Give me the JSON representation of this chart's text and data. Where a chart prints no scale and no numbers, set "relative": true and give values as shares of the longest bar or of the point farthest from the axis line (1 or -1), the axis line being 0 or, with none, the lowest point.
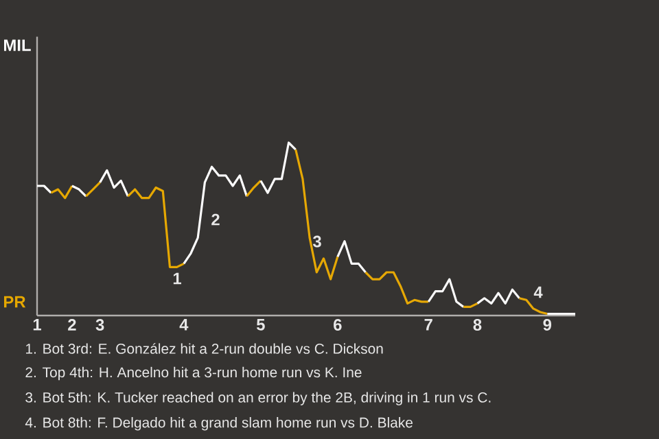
{
  "chart_data": {
    "type": "line",
    "relative": true,
    "marker": "none",
    "line_style": "solid",
    "categories": [
      "1",
      null,
      null,
      null,
      null,
      "2",
      null,
      null,
      null,
      "3",
      null,
      null,
      null,
      null,
      null,
      null,
      null,
      null,
      null,
      null,
      null,
      "4",
      null,
      null,
      null,
      null,
      null,
      null,
      null,
      null,
      null,
      null,
      "5",
      null,
      null,
      null,
      null,
      null,
      null,
      null,
      null,
      null,
      null,
      "6",
      null,
      null,
      null,
      null,
      null,
      null,
      null,
      null,
      null,
      null,
      null,
      null,
      "7",
      null,
      null,
      null,
      null,
      null,
      null,
      "8",
      null,
      null,
      null,
      null,
      null,
      null,
      null,
      null,
      null,
      "9",
      null,
      null,
      null,
      null
    ],
    "series": [
      {
        "name": "MIL",
        "color": "#ffffff",
        "values": [
          0.75,
          0.75,
          0.71,
          null,
          null,
          null,
          null,
          null,
          null,
          null,
          null,
          null,
          null,
          null,
          null,
          null,
          null,
          null,
          null,
          null,
          null,
          null,
          null,
          null,
          null,
          null,
          null,
          null,
          null,
          null,
          null,
          null,
          null,
          null,
          null,
          null,
          null,
          null,
          null,
          null,
          null,
          null,
          null,
          null,
          null,
          null,
          null,
          null,
          null,
          null,
          null,
          null,
          null,
          null,
          null,
          null,
          null,
          null,
          null,
          null,
          null,
          null,
          null,
          null,
          null,
          null,
          null,
          null,
          null,
          null,
          null,
          null,
          null,
          null,
          null,
          null,
          null,
          null
        ]
      },
      {
        "name": "PR",
        "color": "#e6a800",
        "values": [
          null,
          null,
          0.71,
          0.73,
          0.68,
          0.75,
          null,
          null,
          null,
          null,
          null,
          null,
          null,
          null,
          null,
          null,
          null,
          null,
          null,
          null,
          null,
          null,
          null,
          null,
          null,
          null,
          null,
          null,
          null,
          null,
          null,
          null,
          null,
          null,
          null,
          null,
          null,
          null,
          null,
          null,
          null,
          null,
          null,
          null,
          null,
          null,
          null,
          null,
          null,
          null,
          null,
          null,
          null,
          null,
          null,
          null,
          null,
          null,
          null,
          null,
          null,
          null,
          null,
          null,
          null,
          null,
          null,
          null,
          null,
          null,
          null,
          null,
          null,
          null,
          null,
          null,
          null,
          null
        ]
      },
      {
        "color": "#fefefe",
        "values": [
          null,
          null,
          null,
          null,
          null,
          0.75,
          0.73,
          0.69,
          null,
          null,
          null,
          null,
          null,
          null,
          null,
          null,
          null,
          null,
          null,
          null,
          null,
          null,
          null,
          null,
          null,
          null,
          null,
          null,
          null,
          null,
          null,
          null,
          null,
          null,
          null,
          null,
          null,
          null,
          null,
          null,
          null,
          null,
          null,
          null,
          null,
          null,
          null,
          null,
          null,
          null,
          null,
          null,
          null,
          null,
          null,
          null,
          null,
          null,
          null,
          null,
          null,
          null,
          null,
          null,
          null,
          null,
          null,
          null,
          null,
          null,
          null,
          null,
          null,
          null,
          null,
          null,
          null,
          null
        ]
      },
      {
        "color": "#e6a801",
        "values": [
          null,
          null,
          null,
          null,
          null,
          null,
          null,
          0.69,
          0.73,
          0.77,
          null,
          null,
          null,
          null,
          null,
          null,
          null,
          null,
          null,
          null,
          null,
          null,
          null,
          null,
          null,
          null,
          null,
          null,
          null,
          null,
          null,
          null,
          null,
          null,
          null,
          null,
          null,
          null,
          null,
          null,
          null,
          null,
          null,
          null,
          null,
          null,
          null,
          null,
          null,
          null,
          null,
          null,
          null,
          null,
          null,
          null,
          null,
          null,
          null,
          null,
          null,
          null,
          null,
          null,
          null,
          null,
          null,
          null,
          null,
          null,
          null,
          null,
          null,
          null,
          null,
          null,
          null,
          null
        ]
      },
      {
        "color": "#fdfdfd",
        "values": [
          null,
          null,
          null,
          null,
          null,
          null,
          null,
          null,
          null,
          0.77,
          0.84,
          0.74,
          0.78,
          0.69,
          null,
          null,
          null,
          null,
          null,
          null,
          null,
          null,
          null,
          null,
          null,
          null,
          null,
          null,
          null,
          null,
          null,
          null,
          null,
          null,
          null,
          null,
          null,
          null,
          null,
          null,
          null,
          null,
          null,
          null,
          null,
          null,
          null,
          null,
          null,
          null,
          null,
          null,
          null,
          null,
          null,
          null,
          null,
          null,
          null,
          null,
          null,
          null,
          null,
          null,
          null,
          null,
          null,
          null,
          null,
          null,
          null,
          null,
          null,
          null,
          null,
          null,
          null,
          null
        ]
      },
      {
        "color": "#e6a802",
        "values": [
          null,
          null,
          null,
          null,
          null,
          null,
          null,
          null,
          null,
          null,
          null,
          null,
          null,
          0.69,
          0.73,
          0.68,
          0.68,
          0.74,
          0.72,
          0.28,
          0.28,
          0.3,
          null,
          null,
          null,
          null,
          null,
          null,
          null,
          null,
          null,
          null,
          null,
          null,
          null,
          null,
          null,
          null,
          null,
          null,
          null,
          null,
          null,
          null,
          null,
          null,
          null,
          null,
          null,
          null,
          null,
          null,
          null,
          null,
          null,
          null,
          null,
          null,
          null,
          null,
          null,
          null,
          null,
          null,
          null,
          null,
          null,
          null,
          null,
          null,
          null,
          null,
          null,
          null,
          null,
          null,
          null,
          null
        ]
      },
      {
        "color": "#fcfcfc",
        "values": [
          null,
          null,
          null,
          null,
          null,
          null,
          null,
          null,
          null,
          null,
          null,
          null,
          null,
          null,
          null,
          null,
          null,
          null,
          null,
          null,
          null,
          0.3,
          0.36,
          0.45,
          0.77,
          0.86,
          0.81,
          0.81,
          0.75,
          0.81,
          0.69,
          null,
          null,
          null,
          null,
          null,
          null,
          null,
          null,
          null,
          null,
          null,
          null,
          null,
          null,
          null,
          null,
          null,
          null,
          null,
          null,
          null,
          null,
          null,
          null,
          null,
          null,
          null,
          null,
          null,
          null,
          null,
          null,
          null,
          null,
          null,
          null,
          null,
          null,
          null,
          null,
          null,
          null,
          null,
          null,
          null,
          null,
          null
        ]
      },
      {
        "color": "#e6a803",
        "values": [
          null,
          null,
          null,
          null,
          null,
          null,
          null,
          null,
          null,
          null,
          null,
          null,
          null,
          null,
          null,
          null,
          null,
          null,
          null,
          null,
          null,
          null,
          null,
          null,
          null,
          null,
          null,
          null,
          null,
          null,
          0.69,
          0.74,
          0.78,
          null,
          null,
          null,
          null,
          null,
          null,
          null,
          null,
          null,
          null,
          null,
          null,
          null,
          null,
          null,
          null,
          null,
          null,
          null,
          null,
          null,
          null,
          null,
          null,
          null,
          null,
          null,
          null,
          null,
          null,
          null,
          null,
          null,
          null,
          null,
          null,
          null,
          null,
          null,
          null,
          null,
          null,
          null,
          null,
          null
        ]
      },
      {
        "color": "#fbfbfb",
        "values": [
          null,
          null,
          null,
          null,
          null,
          null,
          null,
          null,
          null,
          null,
          null,
          null,
          null,
          null,
          null,
          null,
          null,
          null,
          null,
          null,
          null,
          null,
          null,
          null,
          null,
          null,
          null,
          null,
          null,
          null,
          null,
          null,
          0.78,
          0.71,
          0.79,
          0.79,
          1.0,
          0.96,
          null,
          null,
          null,
          null,
          null,
          null,
          null,
          null,
          null,
          null,
          null,
          null,
          null,
          null,
          null,
          null,
          null,
          null,
          null,
          null,
          null,
          null,
          null,
          null,
          null,
          null,
          null,
          null,
          null,
          null,
          null,
          null,
          null,
          null,
          null,
          null,
          null,
          null,
          null,
          null
        ]
      },
      {
        "color": "#e6a804",
        "values": [
          null,
          null,
          null,
          null,
          null,
          null,
          null,
          null,
          null,
          null,
          null,
          null,
          null,
          null,
          null,
          null,
          null,
          null,
          null,
          null,
          null,
          null,
          null,
          null,
          null,
          null,
          null,
          null,
          null,
          null,
          null,
          null,
          null,
          null,
          null,
          null,
          null,
          0.96,
          0.79,
          0.45,
          0.25,
          0.33,
          0.21,
          0.34,
          null,
          null,
          null,
          null,
          null,
          null,
          null,
          null,
          null,
          null,
          null,
          null,
          null,
          null,
          null,
          null,
          null,
          null,
          null,
          null,
          null,
          null,
          null,
          null,
          null,
          null,
          null,
          null,
          null,
          null,
          null,
          null,
          null,
          null
        ]
      },
      {
        "color": "#fafafa",
        "values": [
          null,
          null,
          null,
          null,
          null,
          null,
          null,
          null,
          null,
          null,
          null,
          null,
          null,
          null,
          null,
          null,
          null,
          null,
          null,
          null,
          null,
          null,
          null,
          null,
          null,
          null,
          null,
          null,
          null,
          null,
          null,
          null,
          null,
          null,
          null,
          null,
          null,
          null,
          null,
          null,
          null,
          null,
          null,
          0.34,
          0.43,
          0.3,
          0.3,
          0.25,
          null,
          null,
          null,
          null,
          null,
          null,
          null,
          null,
          null,
          null,
          null,
          null,
          null,
          null,
          null,
          null,
          null,
          null,
          null,
          null,
          null,
          null,
          null,
          null,
          null,
          null,
          null,
          null,
          null,
          null
        ]
      },
      {
        "color": "#e6a805",
        "values": [
          null,
          null,
          null,
          null,
          null,
          null,
          null,
          null,
          null,
          null,
          null,
          null,
          null,
          null,
          null,
          null,
          null,
          null,
          null,
          null,
          null,
          null,
          null,
          null,
          null,
          null,
          null,
          null,
          null,
          null,
          null,
          null,
          null,
          null,
          null,
          null,
          null,
          null,
          null,
          null,
          null,
          null,
          null,
          null,
          null,
          null,
          null,
          0.25,
          0.21,
          0.21,
          0.25,
          0.25,
          0.17,
          0.07,
          0.09,
          0.08,
          0.08,
          null,
          null,
          null,
          null,
          null,
          null,
          null,
          null,
          null,
          null,
          null,
          null,
          null,
          null,
          null,
          null,
          null,
          null,
          null,
          null,
          null
        ]
      },
      {
        "color": "#f9f9f9",
        "values": [
          null,
          null,
          null,
          null,
          null,
          null,
          null,
          null,
          null,
          null,
          null,
          null,
          null,
          null,
          null,
          null,
          null,
          null,
          null,
          null,
          null,
          null,
          null,
          null,
          null,
          null,
          null,
          null,
          null,
          null,
          null,
          null,
          null,
          null,
          null,
          null,
          null,
          null,
          null,
          null,
          null,
          null,
          null,
          null,
          null,
          null,
          null,
          null,
          null,
          null,
          null,
          null,
          null,
          null,
          null,
          null,
          0.08,
          0.14,
          0.14,
          0.21,
          0.08,
          0.05,
          null,
          null,
          null,
          null,
          null,
          null,
          null,
          null,
          null,
          null,
          null,
          null,
          null,
          null,
          null,
          null
        ]
      },
      {
        "color": "#e6a806",
        "values": [
          null,
          null,
          null,
          null,
          null,
          null,
          null,
          null,
          null,
          null,
          null,
          null,
          null,
          null,
          null,
          null,
          null,
          null,
          null,
          null,
          null,
          null,
          null,
          null,
          null,
          null,
          null,
          null,
          null,
          null,
          null,
          null,
          null,
          null,
          null,
          null,
          null,
          null,
          null,
          null,
          null,
          null,
          null,
          null,
          null,
          null,
          null,
          null,
          null,
          null,
          null,
          null,
          null,
          null,
          null,
          null,
          null,
          null,
          null,
          null,
          null,
          0.05,
          0.05,
          0.07,
          null,
          null,
          null,
          null,
          null,
          null,
          null,
          null,
          null,
          null,
          null,
          null,
          null,
          null
        ]
      },
      {
        "color": "#f8f8f8",
        "values": [
          null,
          null,
          null,
          null,
          null,
          null,
          null,
          null,
          null,
          null,
          null,
          null,
          null,
          null,
          null,
          null,
          null,
          null,
          null,
          null,
          null,
          null,
          null,
          null,
          null,
          null,
          null,
          null,
          null,
          null,
          null,
          null,
          null,
          null,
          null,
          null,
          null,
          null,
          null,
          null,
          null,
          null,
          null,
          null,
          null,
          null,
          null,
          null,
          null,
          null,
          null,
          null,
          null,
          null,
          null,
          null,
          null,
          null,
          null,
          null,
          null,
          null,
          null,
          0.07,
          0.1,
          0.07,
          0.13,
          0.07,
          0.15,
          0.1,
          null,
          null,
          null,
          null,
          null,
          null,
          null,
          null
        ]
      },
      {
        "color": "#e6a807",
        "values": [
          null,
          null,
          null,
          null,
          null,
          null,
          null,
          null,
          null,
          null,
          null,
          null,
          null,
          null,
          null,
          null,
          null,
          null,
          null,
          null,
          null,
          null,
          null,
          null,
          null,
          null,
          null,
          null,
          null,
          null,
          null,
          null,
          null,
          null,
          null,
          null,
          null,
          null,
          null,
          null,
          null,
          null,
          null,
          null,
          null,
          null,
          null,
          null,
          null,
          null,
          null,
          null,
          null,
          null,
          null,
          null,
          null,
          null,
          null,
          null,
          null,
          null,
          null,
          null,
          null,
          null,
          null,
          null,
          null,
          0.1,
          0.09,
          0.04,
          0.02,
          0.01,
          null,
          null,
          null,
          null
        ]
      },
      {
        "color": "#f7f7f7",
        "values": [
          null,
          null,
          null,
          null,
          null,
          null,
          null,
          null,
          null,
          null,
          null,
          null,
          null,
          null,
          null,
          null,
          null,
          null,
          null,
          null,
          null,
          null,
          null,
          null,
          null,
          null,
          null,
          null,
          null,
          null,
          null,
          null,
          null,
          null,
          null,
          null,
          null,
          null,
          null,
          null,
          null,
          null,
          null,
          null,
          null,
          null,
          null,
          null,
          null,
          null,
          null,
          null,
          null,
          null,
          null,
          null,
          null,
          null,
          null,
          null,
          null,
          null,
          null,
          null,
          null,
          null,
          null,
          null,
          null,
          null,
          null,
          null,
          null,
          0.01,
          0.01,
          0.01,
          0.01,
          0.01
        ]
      }
    ],
    "annotations": [
      "1",
      "2",
      "3",
      "4",
      "1. Bot 3rd: E. González hit a 2-run double vs C. Dickson",
      "2. Top 4th: H. Ancelno hit a 3-run home run vs K. Ine",
      "3. Bot 5th: K. Tucker reached on an error by the 2B, driving in 1 run vs C.",
      "4. Bot 8th: F. Delgado hit a grand slam home run vs D. Blake"
    ]
  }
}
